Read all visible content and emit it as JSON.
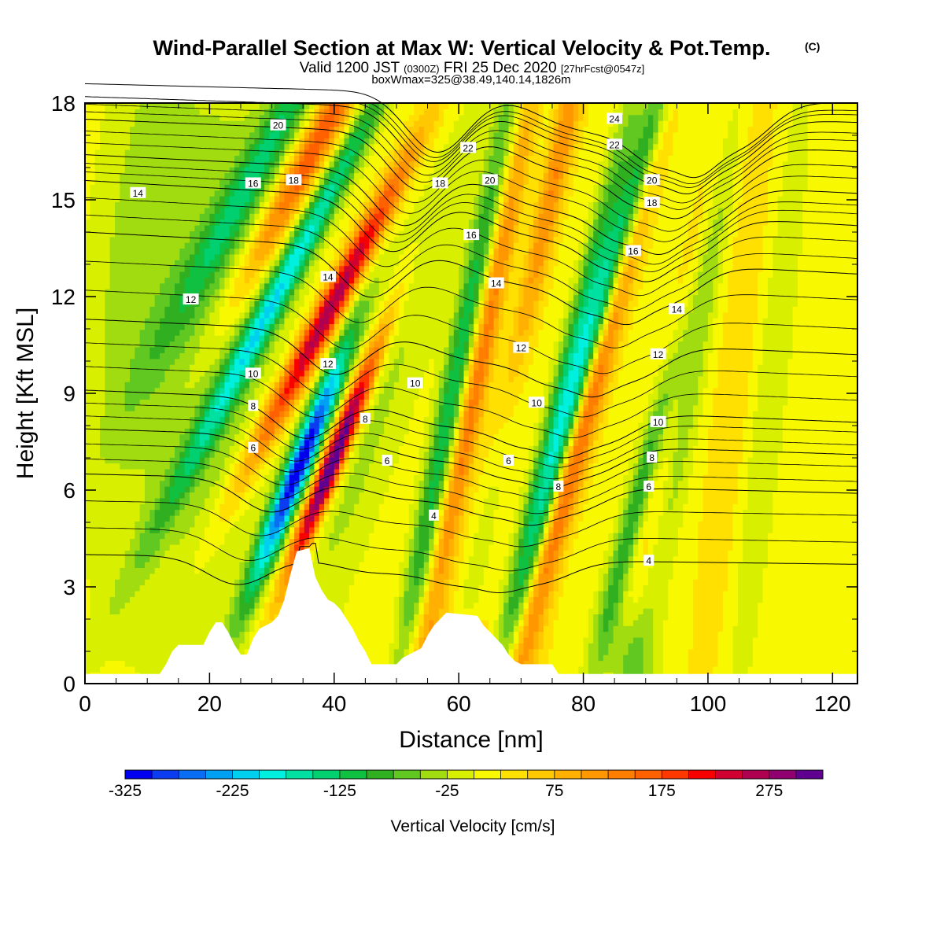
{
  "title": {
    "main": "Wind-Parallel Section at Max W: Vertical Velocity & Pot.Temp.",
    "mark": "(C)",
    "valid_a": "Valid 1200 JST ",
    "valid_b": "(0300Z)",
    "valid_c": " FRI 25 Dec 2020 ",
    "valid_d": "[27hrFcst@0547z]",
    "box": "boxWmax=325@38.49,140.14,1826m"
  },
  "chart_data": {
    "type": "heatmap",
    "xlabel": "Distance [nm]",
    "ylabel": "Height [Kft MSL]",
    "xlim": [
      0,
      124
    ],
    "ylim": [
      0,
      18
    ],
    "x_ticks": [
      0,
      20,
      40,
      60,
      80,
      100,
      120
    ],
    "y_ticks": [
      0,
      3,
      6,
      9,
      12,
      15,
      18
    ],
    "colorbar": {
      "label": "Vertical Velocity [cm/s]",
      "min": -325,
      "max": 325,
      "step": 25,
      "tick_values": [
        -325,
        -225,
        -125,
        -25,
        75,
        175,
        275
      ],
      "colors": [
        "#0000f0",
        "#0c3cf0",
        "#0a6ef5",
        "#00a0f5",
        "#00d0f0",
        "#00f0e0",
        "#00e0a0",
        "#00d070",
        "#10c040",
        "#30b020",
        "#60c820",
        "#a0dc10",
        "#d8f000",
        "#f8f800",
        "#ffe000",
        "#ffc800",
        "#ffb000",
        "#ff9800",
        "#ff7e00",
        "#ff6000",
        "#ff3800",
        "#f80000",
        "#d00030",
        "#b00050",
        "#900070",
        "#600090"
      ]
    },
    "terrain_profile": [
      [
        0,
        0.3
      ],
      [
        12,
        0.3
      ],
      [
        13,
        0.6
      ],
      [
        14,
        1.0
      ],
      [
        15,
        1.2
      ],
      [
        19,
        1.2
      ],
      [
        20,
        1.6
      ],
      [
        21,
        1.9
      ],
      [
        22,
        1.9
      ],
      [
        23,
        1.6
      ],
      [
        24,
        1.2
      ],
      [
        25,
        0.9
      ],
      [
        26,
        0.9
      ],
      [
        27,
        1.4
      ],
      [
        28,
        1.7
      ],
      [
        30,
        1.9
      ],
      [
        31,
        2.1
      ],
      [
        32,
        2.6
      ],
      [
        33,
        3.4
      ],
      [
        34,
        4.1
      ],
      [
        36,
        4.2
      ],
      [
        37,
        3.3
      ],
      [
        38,
        2.9
      ],
      [
        39,
        2.6
      ],
      [
        40,
        2.5
      ],
      [
        41,
        2.3
      ],
      [
        42,
        2.0
      ],
      [
        43,
        1.7
      ],
      [
        44,
        1.3
      ],
      [
        45,
        1.0
      ],
      [
        46,
        0.6
      ],
      [
        50,
        0.6
      ],
      [
        51,
        0.8
      ],
      [
        54,
        1.1
      ],
      [
        55,
        1.5
      ],
      [
        56,
        1.8
      ],
      [
        57,
        2.0
      ],
      [
        58,
        2.2
      ],
      [
        63,
        2.1
      ],
      [
        64,
        1.8
      ],
      [
        65,
        1.6
      ],
      [
        66,
        1.4
      ],
      [
        67,
        1.2
      ],
      [
        68,
        0.9
      ],
      [
        69,
        0.7
      ],
      [
        70,
        0.6
      ],
      [
        75,
        0.6
      ],
      [
        76,
        0.3
      ],
      [
        124,
        0.3
      ]
    ],
    "w_fields": [
      {
        "x": 34.5,
        "z": 6.8,
        "s": 36,
        "amp": -330,
        "xw": 1.5,
        "zw": 2.8
      },
      {
        "x": 32.0,
        "z": 12.5,
        "s": 48,
        "amp": -190,
        "xw": 1.7,
        "zw": 5.0
      },
      {
        "x": 29.0,
        "z": 16.5,
        "s": 50,
        "amp": -120,
        "xw": 2.2,
        "zw": 4.0
      },
      {
        "x": 40.0,
        "z": 7.0,
        "s": 36,
        "amp": 345,
        "xw": 1.3,
        "zw": 2.6
      },
      {
        "x": 39.0,
        "z": 11.5,
        "s": 48,
        "amp": 260,
        "xw": 1.7,
        "zw": 3.5
      },
      {
        "x": 36.5,
        "z": 16.5,
        "s": 48,
        "amp": 170,
        "xw": 2.0,
        "zw": 3.5
      },
      {
        "x": 46.0,
        "z": 8.0,
        "s": 30,
        "amp": -45,
        "xw": 4.0,
        "zw": 7.0
      },
      {
        "x": 20.0,
        "z": 11.0,
        "s": 10,
        "amp": -60,
        "xw": 9.0,
        "zw": 7.0
      },
      {
        "x": 8.0,
        "z": 14.0,
        "s": 10,
        "amp": -40,
        "xw": 5.0,
        "zw": 6.0
      },
      {
        "x": 59.0,
        "z": 9.0,
        "s": 18,
        "amp": -140,
        "xw": 1.5,
        "zw": 7.0
      },
      {
        "x": 63.0,
        "z": 9.5,
        "s": 18,
        "amp": 130,
        "xw": 1.4,
        "zw": 7.0
      },
      {
        "x": 68.0,
        "z": 9.5,
        "s": 18,
        "amp": -125,
        "xw": 1.6,
        "zw": 6.0
      },
      {
        "x": 72.0,
        "z": 13.0,
        "s": 20,
        "amp": 190,
        "xw": 1.6,
        "zw": 6.0
      },
      {
        "x": 77.0,
        "z": 9.0,
        "s": 22,
        "amp": -150,
        "xw": 1.6,
        "zw": 6.5
      },
      {
        "x": 80.5,
        "z": 8.5,
        "s": 24,
        "amp": 170,
        "xw": 1.6,
        "zw": 6.5
      },
      {
        "x": 85.0,
        "z": 13.0,
        "s": 26,
        "amp": -190,
        "xw": 1.5,
        "zw": 5.5
      },
      {
        "x": 90.0,
        "z": 6.5,
        "s": 24,
        "amp": -150,
        "xw": 1.5,
        "zw": 4.0
      },
      {
        "x": 94.0,
        "z": 9.0,
        "s": 20,
        "amp": 70,
        "xw": 1.8,
        "zw": 6.0
      },
      {
        "x": 98.5,
        "z": 11.0,
        "s": 15,
        "amp": -70,
        "xw": 1.6,
        "zw": 6.0
      },
      {
        "x": 104.0,
        "z": 9.0,
        "s": 10,
        "amp": 35,
        "xw": 2.0,
        "zw": 8.0
      },
      {
        "x": 110.0,
        "z": 9.0,
        "s": 10,
        "amp": -35,
        "xw": 2.0,
        "zw": 8.0
      },
      {
        "x": 87.0,
        "z": 0.7,
        "s": 0,
        "amp": -80,
        "xw": 3.0,
        "zw": 1.5
      },
      {
        "x": 60.0,
        "z": 0.8,
        "s": 0,
        "amp": 40,
        "xw": 8.0,
        "zw": 1.0
      }
    ],
    "theta_contours": [
      {
        "label": "4",
        "z": 4.0,
        "drop": 0.3,
        "pos": [
          {
            "x": 56,
            "z": 5.2
          },
          {
            "x": 90.5,
            "z": 3.8
          }
        ]
      },
      {
        "label": "6",
        "z": 6.5,
        "drop": 0.6,
        "pos": [
          {
            "x": 27,
            "z": 7.3
          },
          {
            "x": 48.5,
            "z": 6.9
          },
          {
            "x": 68,
            "z": 6.9
          },
          {
            "x": 90.5,
            "z": 6.1
          }
        ]
      },
      {
        "label": "8",
        "z": 7.9,
        "drop": 0.8,
        "pos": [
          {
            "x": 27,
            "z": 8.6
          },
          {
            "x": 45,
            "z": 8.2
          },
          {
            "x": 76,
            "z": 6.1
          },
          {
            "x": 91,
            "z": 7.0
          }
        ]
      },
      {
        "label": "10",
        "z": 9.1,
        "drop": 1.0,
        "pos": [
          {
            "x": 27,
            "z": 9.6
          },
          {
            "x": 53,
            "z": 9.3
          },
          {
            "x": 72.5,
            "z": 8.7
          },
          {
            "x": 92,
            "z": 8.1
          }
        ]
      },
      {
        "label": "12",
        "z": 11.3,
        "drop": 1.1,
        "pos": [
          {
            "x": 17,
            "z": 11.9
          },
          {
            "x": 39,
            "z": 9.9
          },
          {
            "x": 70,
            "z": 10.4
          },
          {
            "x": 92,
            "z": 10.2
          }
        ]
      },
      {
        "label": "14",
        "z": 14.0,
        "drop": 1.3,
        "pos": [
          {
            "x": 8.5,
            "z": 15.2
          },
          {
            "x": 39,
            "z": 12.6
          },
          {
            "x": 66,
            "z": 12.4
          },
          {
            "x": 95,
            "z": 11.6
          }
        ]
      },
      {
        "label": "16",
        "z": 15.6,
        "drop": 1.4,
        "pos": [
          {
            "x": 27,
            "z": 15.5
          },
          {
            "x": 62,
            "z": 13.9
          },
          {
            "x": 88,
            "z": 13.4
          }
        ]
      },
      {
        "label": "18",
        "z": 16.4,
        "drop": 1.2,
        "pos": [
          {
            "x": 33.5,
            "z": 15.6
          },
          {
            "x": 57,
            "z": 15.5
          },
          {
            "x": 91,
            "z": 14.9
          }
        ]
      },
      {
        "label": "20",
        "z": 17.5,
        "drop": 1.0,
        "pos": [
          {
            "x": 31,
            "z": 17.3
          },
          {
            "x": 65,
            "z": 15.6
          },
          {
            "x": 91,
            "z": 15.6
          }
        ]
      },
      {
        "label": "22",
        "z": 18.2,
        "drop": 0.8,
        "pos": [
          {
            "x": 61.5,
            "z": 16.6
          },
          {
            "x": 85,
            "z": 16.7
          }
        ]
      },
      {
        "label": "24",
        "z": 18.6,
        "drop": 0.6,
        "pos": [
          {
            "x": 85,
            "z": 17.5
          }
        ]
      }
    ]
  }
}
